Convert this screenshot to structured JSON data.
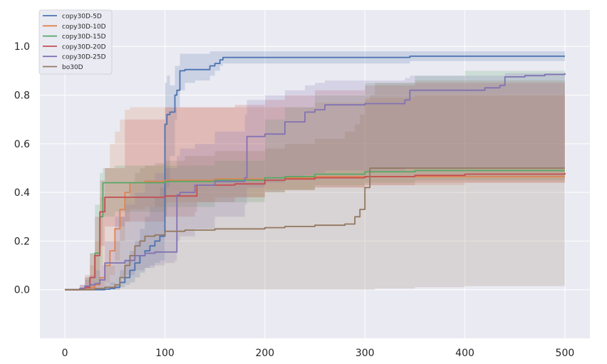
{
  "chart_data": {
    "type": "line",
    "title": "",
    "xlabel": "",
    "ylabel": "",
    "xlim": [
      -25,
      525
    ],
    "ylim": [
      -0.2,
      1.15
    ],
    "xticks": [
      0,
      100,
      200,
      300,
      400,
      500
    ],
    "yticks": [
      0.0,
      0.2,
      0.4,
      0.6,
      0.8,
      1.0
    ],
    "xtick_labels": [
      "0",
      "100",
      "200",
      "300",
      "400",
      "500"
    ],
    "ytick_labels": [
      "0.0",
      "0.2",
      "0.4",
      "0.6",
      "0.8",
      "1.0"
    ],
    "grid": true,
    "legend_position": "top-left",
    "series": [
      {
        "name": "copy30D-5D",
        "color": "#4c72b0",
        "x": [
          0,
          35,
          40,
          45,
          50,
          55,
          60,
          65,
          70,
          75,
          80,
          85,
          90,
          95,
          100,
          102,
          105,
          110,
          112,
          115,
          120,
          130,
          145,
          150,
          155,
          158,
          200,
          300,
          345,
          500
        ],
        "mean": [
          0,
          0,
          0.002,
          0.005,
          0.01,
          0.03,
          0.05,
          0.08,
          0.11,
          0.14,
          0.16,
          0.18,
          0.2,
          0.22,
          0.68,
          0.72,
          0.73,
          0.8,
          0.82,
          0.9,
          0.905,
          0.905,
          0.92,
          0.93,
          0.945,
          0.955,
          0.955,
          0.955,
          0.96,
          0.96
        ],
        "lower": [
          0,
          0,
          0,
          0,
          0,
          0.01,
          0.02,
          0.03,
          0.05,
          0.07,
          0.09,
          0.1,
          0.11,
          0.12,
          0.3,
          0.42,
          0.55,
          0.7,
          0.75,
          0.82,
          0.85,
          0.86,
          0.88,
          0.9,
          0.92,
          0.93,
          0.93,
          0.93,
          0.94,
          0.94
        ],
        "upper": [
          0,
          0.01,
          0.02,
          0.03,
          0.05,
          0.08,
          0.12,
          0.16,
          0.2,
          0.25,
          0.3,
          0.34,
          0.38,
          0.42,
          0.85,
          0.88,
          0.84,
          0.92,
          0.92,
          0.97,
          0.97,
          0.97,
          0.98,
          0.98,
          0.98,
          0.98,
          0.98,
          0.98,
          0.98,
          0.98
        ]
      },
      {
        "name": "copy30D-10D",
        "color": "#dd8452",
        "x": [
          0,
          20,
          25,
          30,
          35,
          40,
          45,
          50,
          55,
          60,
          65,
          80,
          100,
          150,
          200,
          250,
          300,
          350,
          400,
          500
        ],
        "mean": [
          0,
          0.005,
          0.01,
          0.02,
          0.05,
          0.1,
          0.16,
          0.25,
          0.33,
          0.4,
          0.44,
          0.445,
          0.45,
          0.455,
          0.46,
          0.465,
          0.465,
          0.465,
          0.465,
          0.465
        ],
        "lower": [
          0,
          0,
          0,
          0,
          0.01,
          0.03,
          0.06,
          0.12,
          0.2,
          0.28,
          0.33,
          0.34,
          0.36,
          0.38,
          0.41,
          0.42,
          0.43,
          0.43,
          0.44,
          0.44
        ],
        "upper": [
          0,
          0.05,
          0.1,
          0.2,
          0.38,
          0.5,
          0.6,
          0.65,
          0.7,
          0.74,
          0.75,
          0.75,
          0.75,
          0.75,
          0.75,
          0.77,
          0.79,
          0.8,
          0.8,
          0.8
        ]
      },
      {
        "name": "copy30D-15D",
        "color": "#55a868",
        "x": [
          0,
          15,
          20,
          25,
          30,
          35,
          38,
          50,
          100,
          150,
          200,
          220,
          250,
          300,
          350,
          400,
          500
        ],
        "mean": [
          0,
          0.005,
          0.01,
          0.05,
          0.15,
          0.3,
          0.44,
          0.44,
          0.445,
          0.45,
          0.46,
          0.465,
          0.475,
          0.485,
          0.49,
          0.49,
          0.49
        ],
        "lower": [
          0,
          0,
          0,
          0,
          0.02,
          0.1,
          0.3,
          0.32,
          0.34,
          0.36,
          0.4,
          0.41,
          0.43,
          0.44,
          0.45,
          0.45,
          0.45
        ],
        "upper": [
          0,
          0.01,
          0.05,
          0.15,
          0.35,
          0.48,
          0.5,
          0.51,
          0.51,
          0.53,
          0.7,
          0.75,
          0.8,
          0.85,
          0.88,
          0.9,
          0.91
        ]
      },
      {
        "name": "copy30D-20D",
        "color": "#c44e52",
        "x": [
          0,
          15,
          20,
          25,
          30,
          35,
          40,
          60,
          100,
          130,
          132,
          170,
          200,
          220,
          250,
          300,
          350,
          400,
          500
        ],
        "mean": [
          0,
          0.005,
          0.01,
          0.05,
          0.14,
          0.32,
          0.38,
          0.38,
          0.385,
          0.385,
          0.43,
          0.435,
          0.45,
          0.455,
          0.46,
          0.465,
          0.47,
          0.475,
          0.48
        ],
        "lower": [
          0,
          0,
          0,
          0,
          0.05,
          0.18,
          0.26,
          0.28,
          0.3,
          0.32,
          0.36,
          0.38,
          0.4,
          0.41,
          0.42,
          0.43,
          0.44,
          0.44,
          0.44
        ],
        "upper": [
          0,
          0.02,
          0.06,
          0.15,
          0.3,
          0.45,
          0.5,
          0.7,
          0.75,
          0.75,
          0.75,
          0.76,
          0.78,
          0.8,
          0.82,
          0.84,
          0.85,
          0.85,
          0.85
        ]
      },
      {
        "name": "copy30D-25D",
        "color": "#8172b3",
        "x": [
          0,
          15,
          20,
          25,
          30,
          35,
          40,
          50,
          60,
          70,
          80,
          90,
          100,
          110,
          112,
          115,
          130,
          150,
          180,
          182,
          200,
          220,
          240,
          250,
          260,
          300,
          340,
          345,
          420,
          435,
          440,
          460,
          480,
          500
        ],
        "mean": [
          0,
          0.005,
          0.015,
          0.02,
          0.025,
          0.04,
          0.11,
          0.11,
          0.12,
          0.14,
          0.15,
          0.155,
          0.155,
          0.155,
          0.39,
          0.4,
          0.43,
          0.445,
          0.46,
          0.63,
          0.64,
          0.69,
          0.73,
          0.74,
          0.76,
          0.765,
          0.78,
          0.82,
          0.83,
          0.84,
          0.875,
          0.88,
          0.885,
          0.89
        ],
        "lower": [
          0,
          0,
          0,
          0,
          0,
          0,
          0.02,
          0.05,
          0.06,
          0.08,
          0.09,
          0.1,
          0.11,
          0.12,
          0.2,
          0.22,
          0.25,
          0.3,
          0.35,
          0.42,
          0.44,
          0.46,
          0.47,
          0.48,
          0.49,
          0.49,
          0.5,
          0.5,
          0.5,
          0.5,
          0.5,
          0.5,
          0.5,
          0.5
        ],
        "upper": [
          0,
          0.02,
          0.04,
          0.06,
          0.08,
          0.1,
          0.2,
          0.3,
          0.35,
          0.4,
          0.45,
          0.48,
          0.5,
          0.5,
          0.55,
          0.58,
          0.6,
          0.65,
          0.72,
          0.78,
          0.8,
          0.82,
          0.84,
          0.85,
          0.86,
          0.86,
          0.87,
          0.88,
          0.88,
          0.88,
          0.89,
          0.89,
          0.89,
          0.9
        ]
      },
      {
        "name": "bo30D",
        "color": "#937860",
        "x": [
          0,
          20,
          30,
          40,
          50,
          55,
          60,
          65,
          70,
          75,
          80,
          90,
          100,
          120,
          150,
          200,
          220,
          250,
          280,
          290,
          295,
          300,
          305,
          310,
          350,
          400,
          500
        ],
        "mean": [
          0,
          0,
          0.005,
          0.01,
          0.02,
          0.05,
          0.1,
          0.14,
          0.18,
          0.2,
          0.22,
          0.225,
          0.24,
          0.245,
          0.25,
          0.255,
          0.26,
          0.265,
          0.27,
          0.3,
          0.33,
          0.42,
          0.5,
          0.5,
          0.5,
          0.5,
          0.5
        ],
        "lower": [
          0,
          0,
          0,
          0,
          0,
          0,
          0,
          0,
          0,
          0,
          0,
          0,
          0,
          0,
          0,
          0,
          0,
          0,
          0,
          0,
          0,
          0,
          0,
          0.005,
          0.01,
          0.015,
          0.025
        ],
        "upper": [
          0,
          0.01,
          0.05,
          0.1,
          0.2,
          0.3,
          0.38,
          0.44,
          0.48,
          0.5,
          0.51,
          0.52,
          0.53,
          0.55,
          0.57,
          0.58,
          0.6,
          0.62,
          0.65,
          0.68,
          0.72,
          0.78,
          0.8,
          0.85,
          0.86,
          0.86,
          0.86
        ]
      }
    ]
  }
}
